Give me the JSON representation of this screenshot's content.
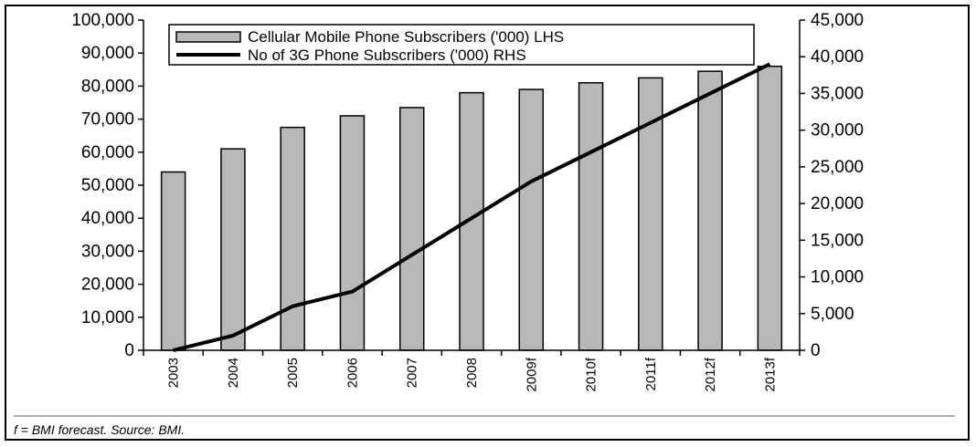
{
  "chart_data": {
    "type": "bar+line",
    "categories": [
      "2003",
      "2004",
      "2005",
      "2006",
      "2007",
      "2008",
      "2009f",
      "2010f",
      "2011f",
      "2012f",
      "2013f"
    ],
    "series": [
      {
        "name": "Cellular Mobile Phone Subscribers ('000) LHS",
        "type": "bar",
        "axis": "left",
        "values": [
          54000,
          61000,
          67500,
          71000,
          73500,
          78000,
          79000,
          81000,
          82500,
          84500,
          86000
        ]
      },
      {
        "name": "No of 3G Phone Subscribers ('000) RHS",
        "type": "line",
        "axis": "right",
        "values": [
          0,
          2000,
          6000,
          8000,
          13000,
          18000,
          23000,
          27000,
          31000,
          35000,
          39000
        ]
      }
    ],
    "ylim_left": [
      0,
      100000
    ],
    "ylim_right": [
      0,
      45000
    ],
    "yticks_left": [
      "0",
      "10,000",
      "20,000",
      "30,000",
      "40,000",
      "50,000",
      "60,000",
      "70,000",
      "80,000",
      "90,000",
      "100,000"
    ],
    "yticks_right": [
      "0",
      "5,000",
      "10,000",
      "15,000",
      "20,000",
      "25,000",
      "30,000",
      "35,000",
      "40,000",
      "45,000"
    ],
    "legend_position": "top-left",
    "grid": false,
    "bar_color": "#b8b8b8",
    "line_color": "#000000"
  },
  "footnote": "f = BMI forecast. Source: BMI."
}
